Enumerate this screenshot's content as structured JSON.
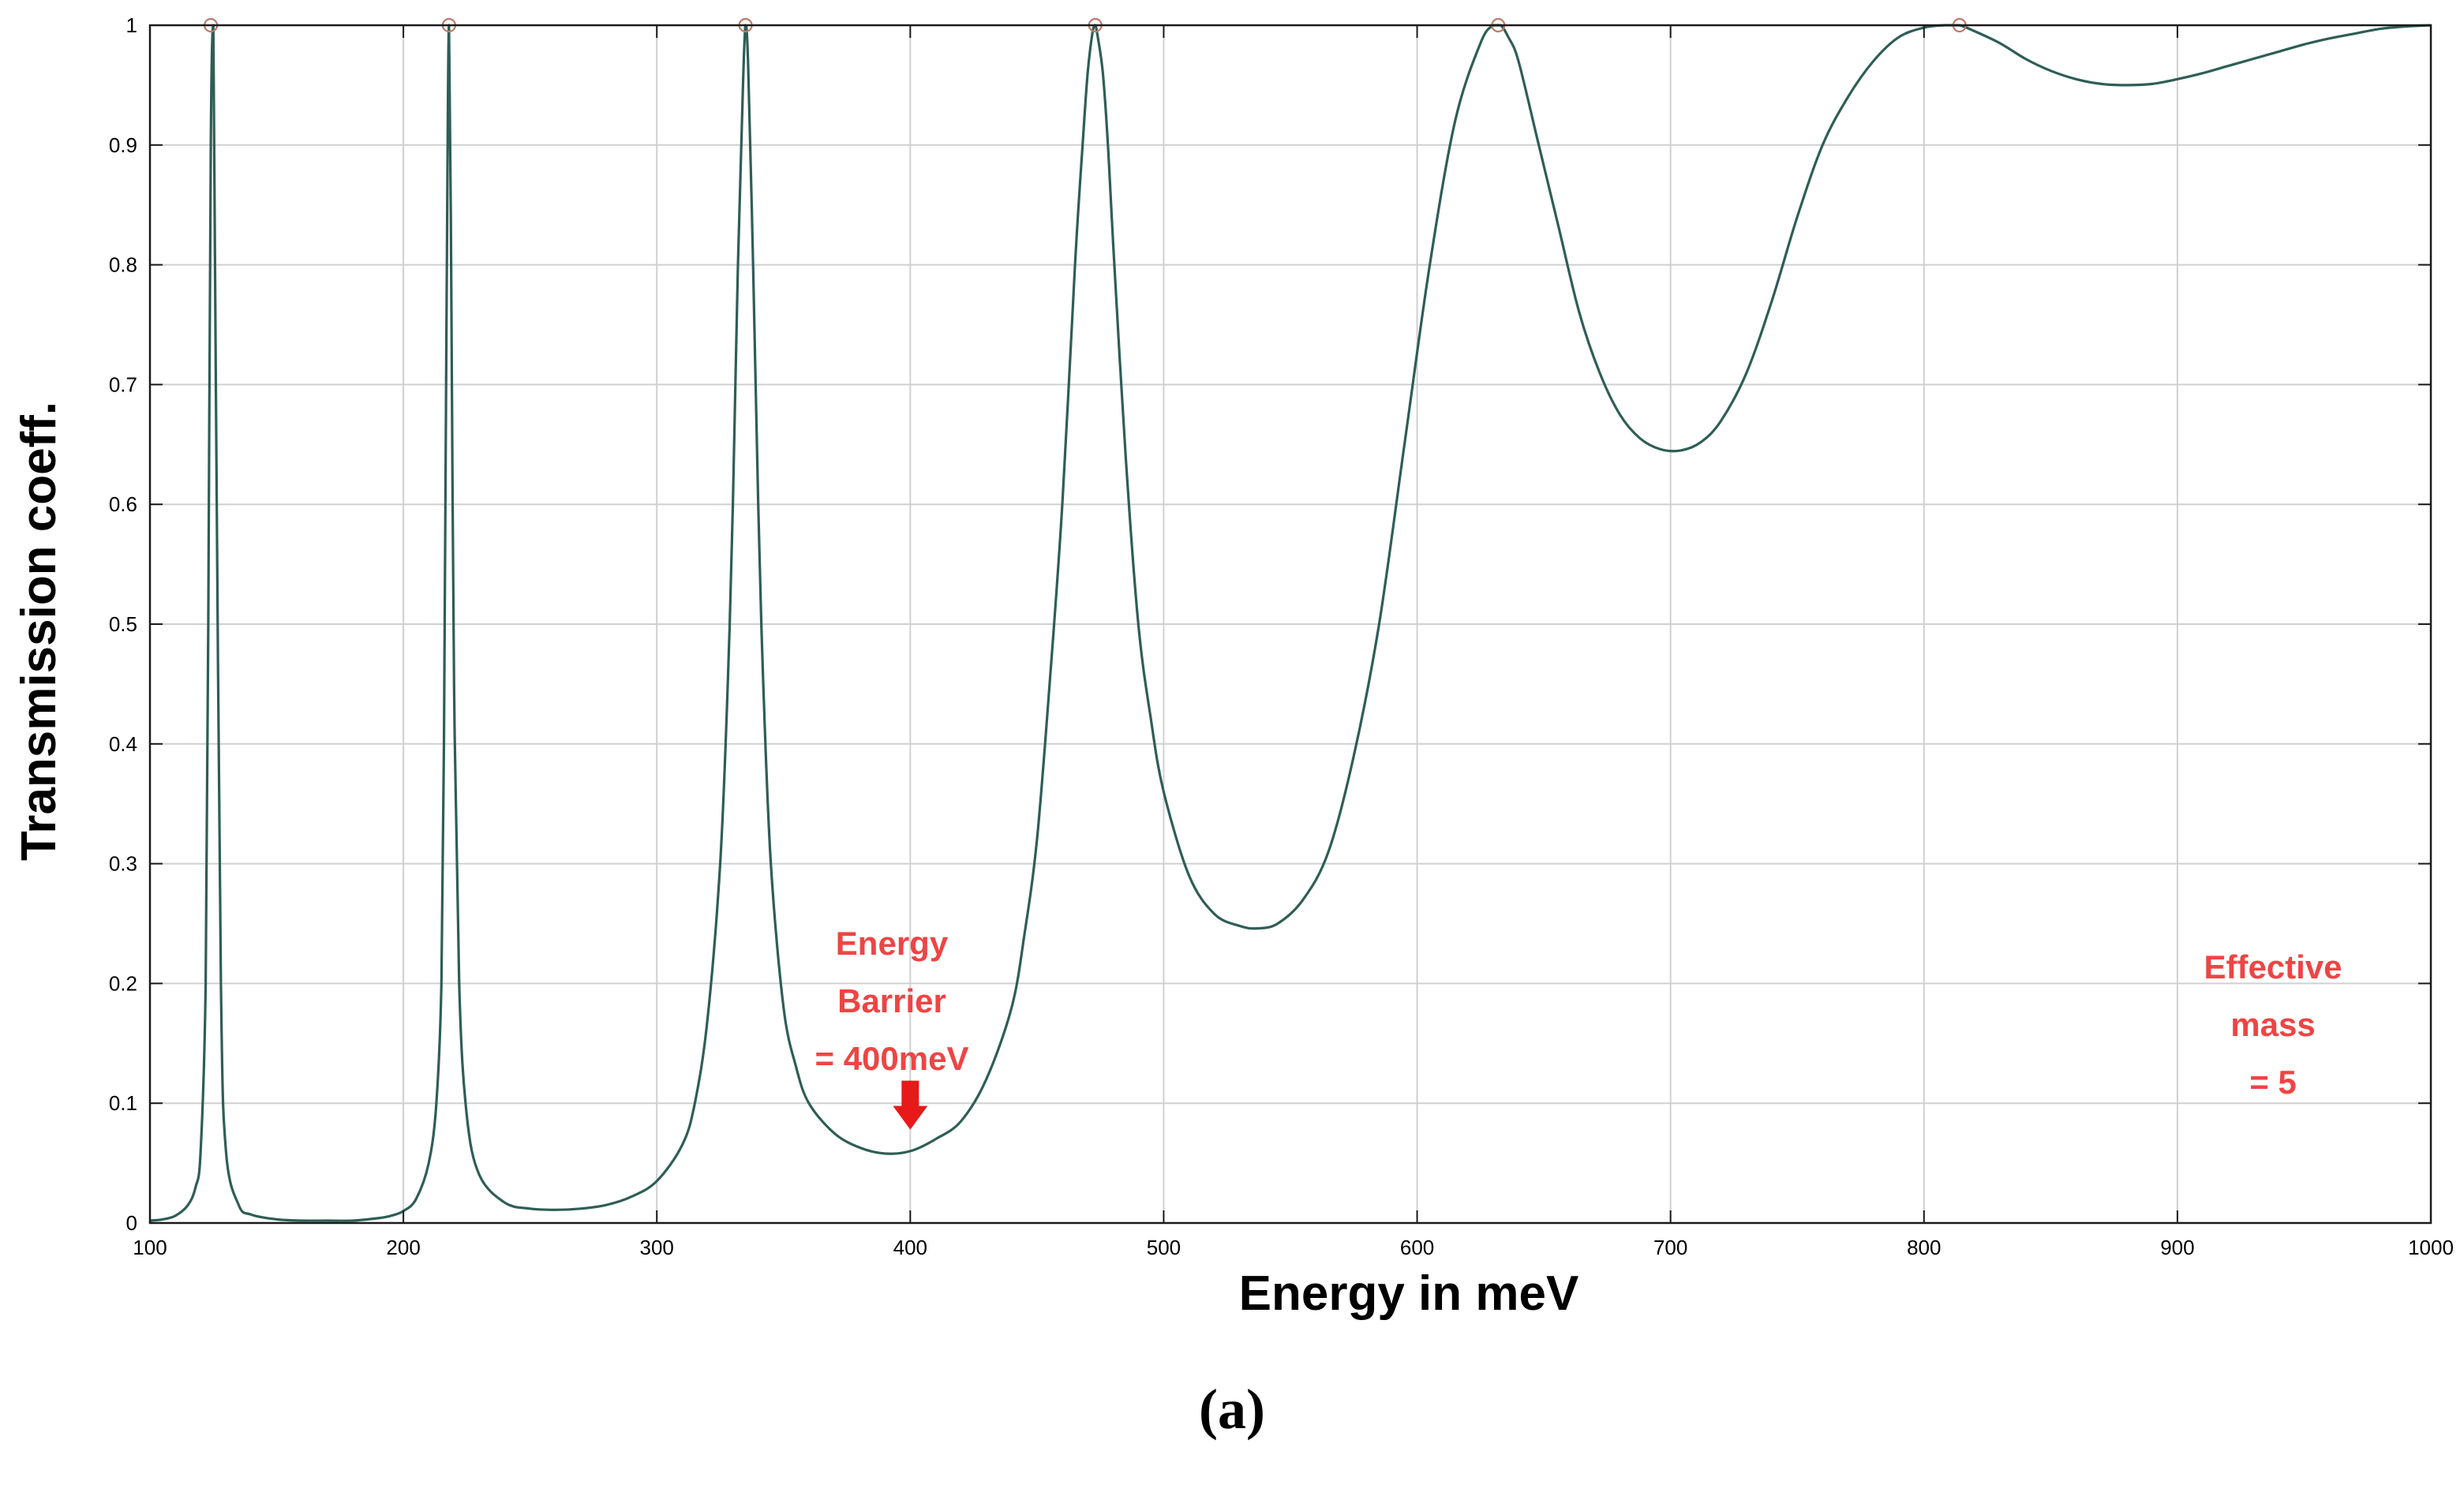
{
  "chart_data": {
    "type": "line",
    "title": "",
    "xlabel": "Energy in meV",
    "ylabel": "Transmission coeff.",
    "xlim": [
      100,
      1000
    ],
    "ylim": [
      0,
      1
    ],
    "xticks": [
      100,
      200,
      300,
      400,
      500,
      600,
      700,
      800,
      900,
      1000
    ],
    "yticks": [
      0,
      0.1,
      0.2,
      0.3,
      0.4,
      0.5,
      0.6,
      0.7,
      0.8,
      0.9,
      1
    ],
    "ytick_labels": [
      "0",
      "0.1",
      "0.2",
      "0.3",
      "0.4",
      "0.5",
      "0.6",
      "0.7",
      "0.8",
      "0.9",
      "1"
    ],
    "grid": true,
    "line_color": "#2e5e55",
    "marker_color": "#c0786a",
    "annotation_color": "#ef4444",
    "arrow_color": "#e81919",
    "series": [
      {
        "x": [
          100,
          105,
          110,
          115,
          118,
          120,
          122,
          123,
          124,
          125,
          126,
          128,
          130,
          135,
          140,
          150,
          160,
          170,
          180,
          190,
          195,
          200,
          205,
          210,
          213,
          215,
          216,
          217,
          218,
          219,
          220,
          222,
          225,
          230,
          240,
          250,
          260,
          270,
          280,
          290,
          300,
          310,
          315,
          320,
          325,
          328,
          330,
          332,
          334,
          335,
          336,
          338,
          340,
          342,
          345,
          350,
          355,
          360,
          370,
          380,
          390,
          400,
          410,
          420,
          430,
          440,
          445,
          450,
          455,
          460,
          465,
          468,
          470,
          472,
          473,
          474,
          476,
          478,
          480,
          485,
          490,
          495,
          500,
          510,
          520,
          530,
          537,
          545,
          555,
          565,
          575,
          585,
          595,
          605,
          615,
          625,
          630,
          633,
          636,
          640,
          648,
          656,
          664,
          672,
          680,
          688,
          696,
          704,
          712,
          720,
          730,
          740,
          750,
          760,
          770,
          780,
          790,
          800,
          808,
          814,
          820,
          830,
          840,
          850,
          860,
          870,
          880,
          890,
          900,
          910,
          920,
          930,
          940,
          950,
          960,
          970,
          980,
          990,
          1000
        ],
        "y": [
          0.002,
          0.003,
          0.006,
          0.015,
          0.03,
          0.06,
          0.2,
          0.5,
          0.9,
          1.0,
          0.7,
          0.2,
          0.06,
          0.015,
          0.007,
          0.003,
          0.002,
          0.002,
          0.002,
          0.004,
          0.006,
          0.01,
          0.02,
          0.05,
          0.1,
          0.2,
          0.4,
          0.75,
          1.0,
          0.75,
          0.45,
          0.2,
          0.09,
          0.04,
          0.017,
          0.012,
          0.011,
          0.012,
          0.015,
          0.022,
          0.035,
          0.065,
          0.1,
          0.17,
          0.3,
          0.45,
          0.6,
          0.8,
          0.95,
          1.0,
          0.97,
          0.8,
          0.6,
          0.45,
          0.3,
          0.18,
          0.13,
          0.1,
          0.075,
          0.063,
          0.058,
          0.06,
          0.07,
          0.085,
          0.12,
          0.18,
          0.24,
          0.32,
          0.45,
          0.6,
          0.8,
          0.9,
          0.96,
          0.995,
          1.0,
          0.99,
          0.96,
          0.9,
          0.82,
          0.64,
          0.5,
          0.42,
          0.36,
          0.29,
          0.258,
          0.248,
          0.246,
          0.25,
          0.27,
          0.31,
          0.39,
          0.5,
          0.65,
          0.8,
          0.92,
          0.985,
          1.0,
          1.0,
          0.99,
          0.97,
          0.9,
          0.83,
          0.76,
          0.71,
          0.675,
          0.655,
          0.646,
          0.645,
          0.652,
          0.67,
          0.71,
          0.77,
          0.84,
          0.9,
          0.94,
          0.97,
          0.99,
          0.998,
          1.0,
          1.0,
          0.995,
          0.985,
          0.972,
          0.962,
          0.955,
          0.951,
          0.95,
          0.951,
          0.955,
          0.96,
          0.966,
          0.972,
          0.978,
          0.984,
          0.989,
          0.993,
          0.997,
          0.999,
          1.0
        ]
      }
    ],
    "peak_markers": {
      "x": [
        124,
        218,
        335,
        473,
        632,
        814
      ],
      "y": [
        1,
        1,
        1,
        1,
        1,
        1
      ]
    },
    "annotations": [
      {
        "lines": [
          "Energy",
          "Barrier",
          "= 400meV"
        ],
        "arrow_x": 400,
        "arrow_y": 0.078
      },
      {
        "lines": [
          "Effective",
          "mass",
          "= 5"
        ]
      }
    ]
  },
  "caption": "(a)"
}
